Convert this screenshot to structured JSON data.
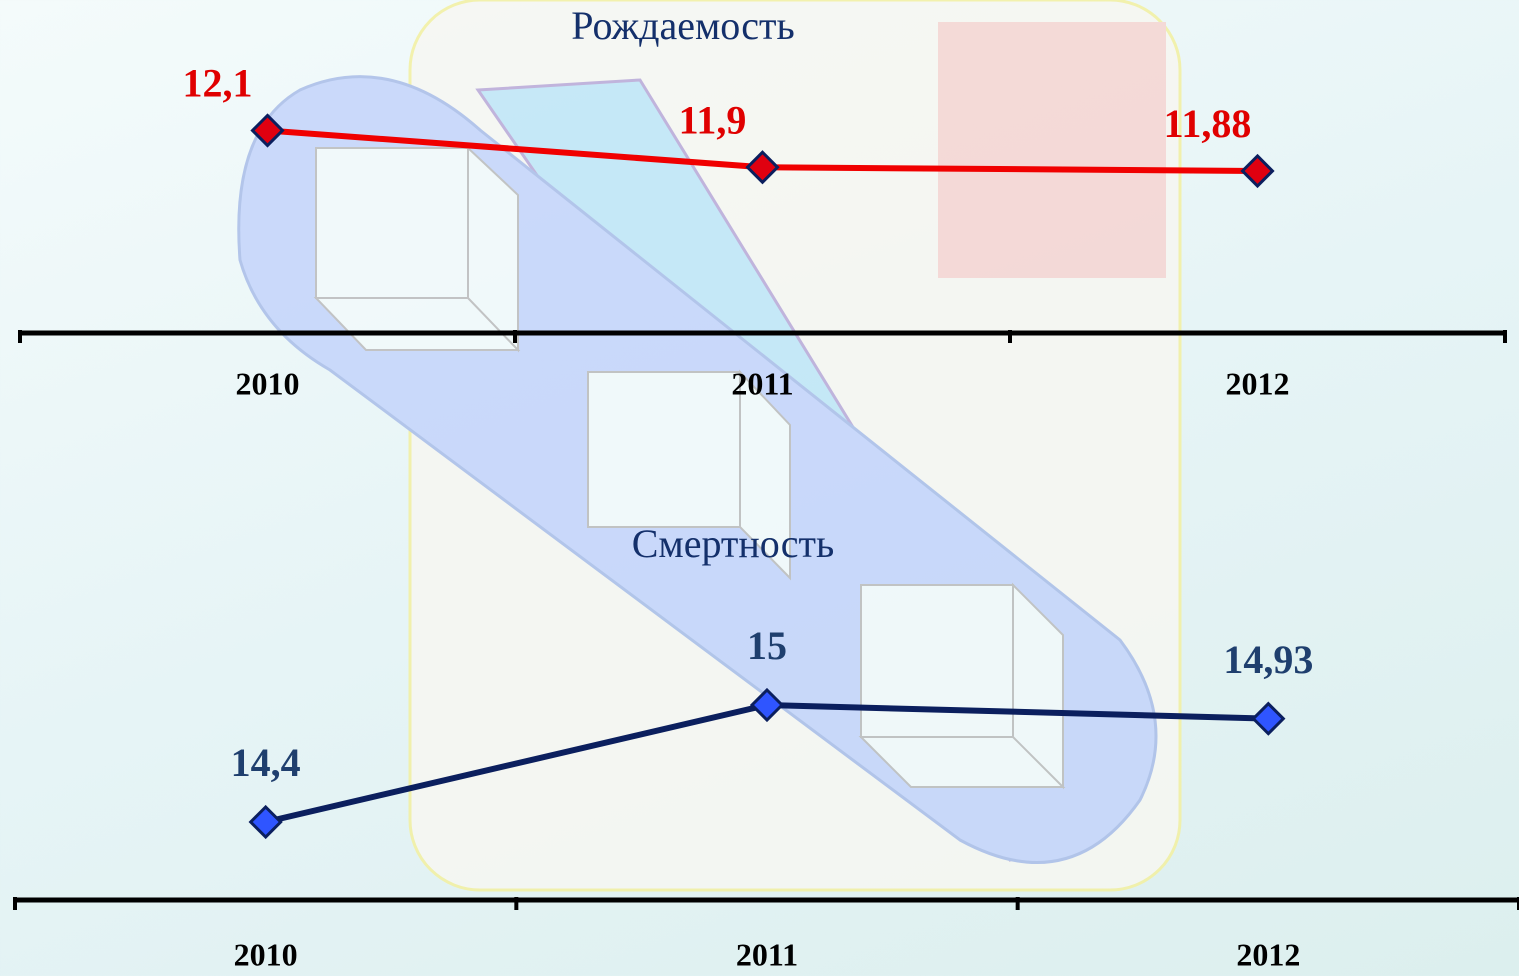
{
  "chart_data": [
    {
      "type": "line",
      "title": "Рождаемость",
      "categories": [
        "2010",
        "2011",
        "2012"
      ],
      "values": [
        12.1,
        11.9,
        11.88
      ],
      "value_labels": [
        "12,1",
        "11,9",
        "11,88"
      ],
      "color": "#f00000",
      "marker_color": "#e00010",
      "label_color": "#e00000",
      "ylim": [
        11,
        12.7
      ]
    },
    {
      "type": "line",
      "title": "Смертность",
      "categories": [
        "2010",
        "2011",
        "2012"
      ],
      "values": [
        14.4,
        15,
        14.93
      ],
      "value_labels": [
        "14,4",
        "15",
        "14,93"
      ],
      "color": "#0b1f5e",
      "marker_color": "#2f55ff",
      "label_color": "#1f3f6e",
      "ylim": [
        14,
        15.8
      ]
    }
  ]
}
